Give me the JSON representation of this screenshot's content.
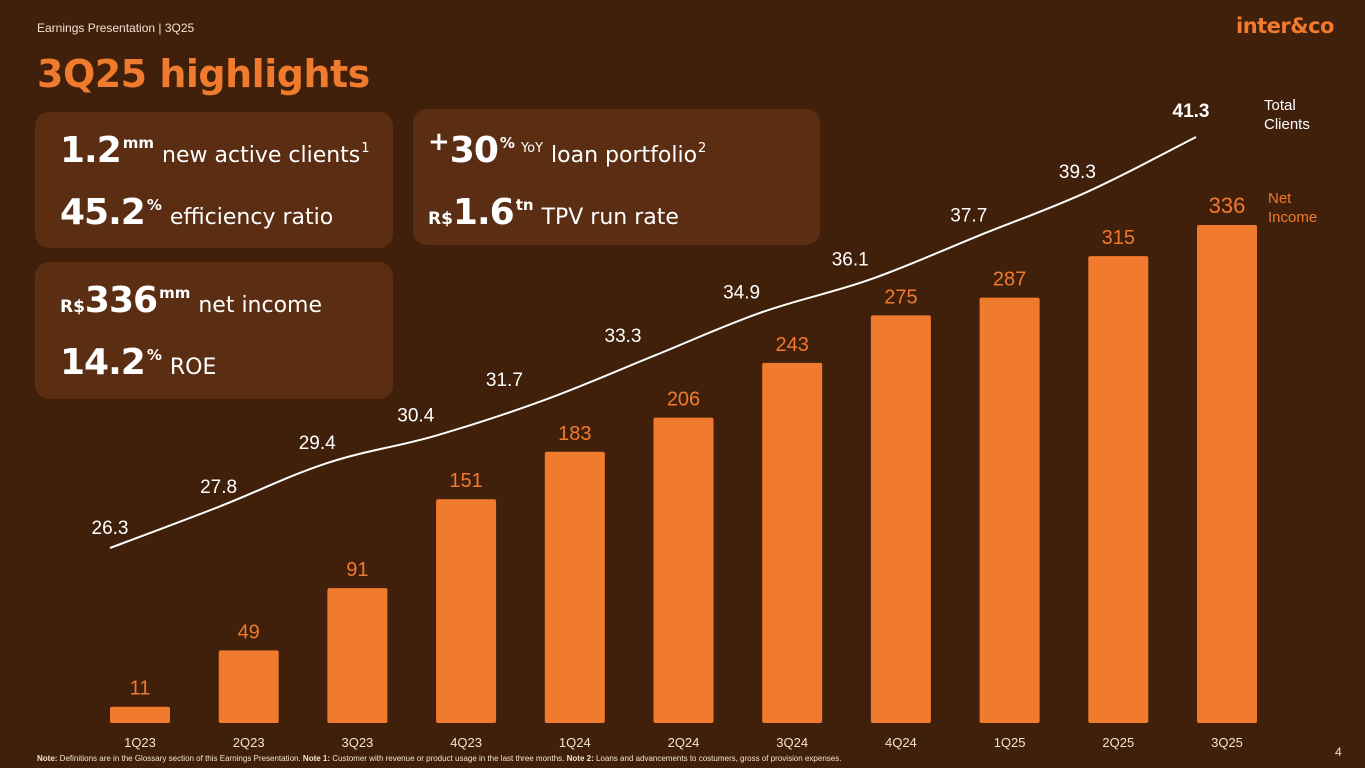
{
  "header": {
    "label": "Earnings Presentation | 3Q25",
    "logo": "inter&co"
  },
  "title": "3Q25 highlights",
  "kpis": {
    "clients": {
      "num": "1.2",
      "unit": "mm",
      "text": "new active clients",
      "sup": "1"
    },
    "efficiency": {
      "num": "45.2",
      "unit": "%",
      "text": "efficiency ratio"
    },
    "loan": {
      "plus": "+",
      "num": "30",
      "unit": "%",
      "yoy": "YoY",
      "text": "loan portfolio",
      "sup": "2"
    },
    "tpv": {
      "pre": "R$",
      "num": "1.6",
      "unit": "tn",
      "text": "TPV run rate"
    },
    "net_income": {
      "pre": "R$",
      "num": "336",
      "unit": "mm",
      "text": "net income"
    },
    "roe": {
      "num": "14.2",
      "unit": "%",
      "text": "ROE"
    }
  },
  "legend": {
    "total_clients": "Total Clients",
    "net_income": "Net Income"
  },
  "chart_data": {
    "type": "bar",
    "categories": [
      "1Q23",
      "2Q23",
      "3Q23",
      "4Q23",
      "1Q24",
      "2Q24",
      "3Q24",
      "4Q24",
      "1Q25",
      "2Q25",
      "3Q25"
    ],
    "series": [
      {
        "name": "Net Income",
        "type": "bar",
        "values": [
          11,
          49,
          91,
          151,
          183,
          206,
          243,
          275,
          287,
          315,
          336
        ]
      },
      {
        "name": "Total Clients",
        "type": "line",
        "values": [
          26.3,
          27.8,
          29.4,
          30.4,
          31.7,
          33.3,
          34.9,
          36.1,
          37.7,
          39.3,
          41.3
        ]
      }
    ],
    "colors": {
      "bar": "#f07a2e",
      "bar_label": "#f07a2e",
      "line": "#ffffff",
      "line_label": "#ffffff"
    },
    "legend_placement": "right",
    "grid": false
  },
  "footer": {
    "note_label": "Note:",
    "note_text": " Definitions are in the Glossary section of this Earnings Presentation. ",
    "note1_label": "Note 1:",
    "note1_text": " Customer with revenue or product usage in the last three months. ",
    "note2_label": "Note 2:",
    "note2_text": " Loans and advancements to costumers, gross of provision expenses.",
    "page": "4"
  }
}
